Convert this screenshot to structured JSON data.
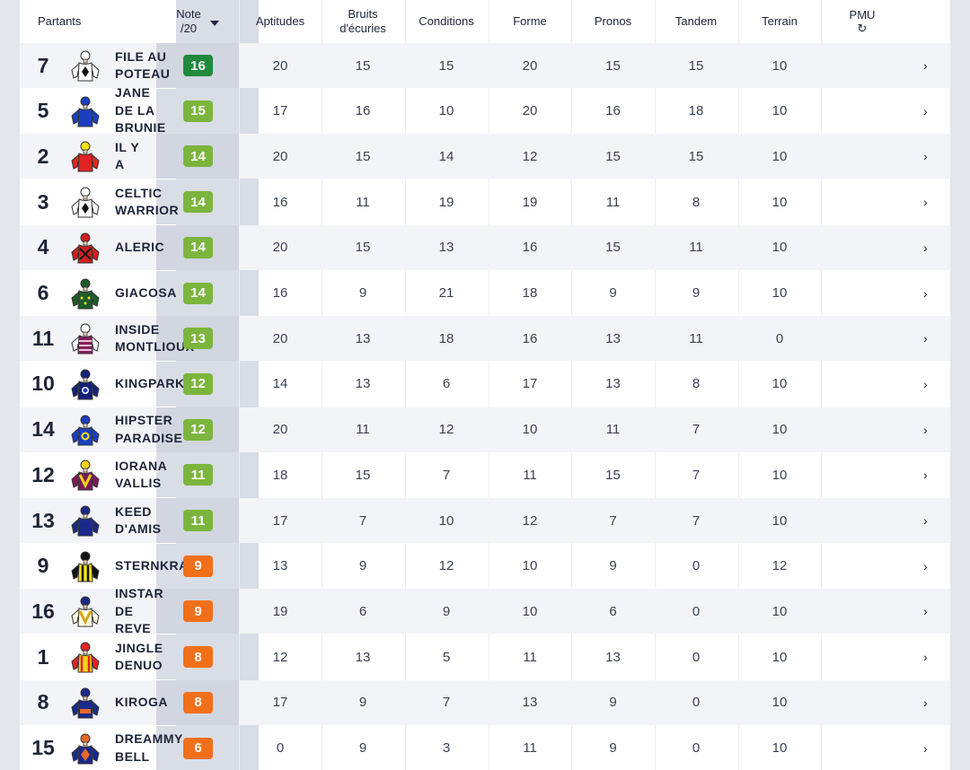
{
  "header": {
    "partants": "Partants",
    "note_line1": "Note",
    "note_line2": "/20",
    "aptitudes": "Aptitudes",
    "bruits_line1": "Bruits",
    "bruits_line2": "d'écuries",
    "conditions": "Conditions",
    "forme": "Forme",
    "pronos": "Pronos",
    "tandem": "Tandem",
    "terrain": "Terrain",
    "pmu": "PMU",
    "refresh_icon": "↻"
  },
  "colors": {
    "dark_green": "#1f8a3c",
    "green": "#7cb53d",
    "orange": "#f26f1a"
  },
  "rows": [
    {
      "num": "7",
      "name": "FILE AU\nPOTEAU",
      "note": "16",
      "badge": "dark_green",
      "aptitudes": "20",
      "bruits": "15",
      "conditions": "15",
      "forme": "20",
      "pronos": "15",
      "tandem": "15",
      "terrain": "10",
      "chevron": "›",
      "jersey": {
        "body": "#ffffff",
        "sleeve": "#ffffff",
        "cap": "#ffffff",
        "mark": "diamond"
      }
    },
    {
      "num": "5",
      "name": "JANE\nDE LA\nBRUNIE",
      "note": "15",
      "badge": "green",
      "aptitudes": "17",
      "bruits": "16",
      "conditions": "10",
      "forme": "20",
      "pronos": "16",
      "tandem": "18",
      "terrain": "10",
      "chevron": "›",
      "jersey": {
        "body": "#1c3fbf",
        "sleeve": "#1c3fbf",
        "cap": "#1c3fbf",
        "mark": "none"
      }
    },
    {
      "num": "2",
      "name": "IL Y\nA",
      "note": "14",
      "badge": "green",
      "aptitudes": "20",
      "bruits": "15",
      "conditions": "14",
      "forme": "12",
      "pronos": "15",
      "tandem": "15",
      "terrain": "10",
      "chevron": "›",
      "jersey": {
        "body": "#e02323",
        "sleeve": "#e02323",
        "cap": "#f2e21a",
        "mark": "none"
      }
    },
    {
      "num": "3",
      "name": "CELTIC\nWARRIOR",
      "note": "14",
      "badge": "green",
      "aptitudes": "16",
      "bruits": "11",
      "conditions": "19",
      "forme": "19",
      "pronos": "11",
      "tandem": "8",
      "terrain": "10",
      "chevron": "›",
      "jersey": {
        "body": "#ffffff",
        "sleeve": "#ffffff",
        "cap": "#ffffff",
        "mark": "diamond"
      }
    },
    {
      "num": "4",
      "name": "ALERIC",
      "note": "14",
      "badge": "green",
      "aptitudes": "20",
      "bruits": "15",
      "conditions": "13",
      "forme": "16",
      "pronos": "15",
      "tandem": "11",
      "terrain": "10",
      "chevron": "›",
      "jersey": {
        "body": "#d11f1f",
        "sleeve": "#d11f1f",
        "cap": "#d11f1f",
        "mark": "cross"
      }
    },
    {
      "num": "6",
      "name": "GIACOSA",
      "note": "14",
      "badge": "green",
      "aptitudes": "16",
      "bruits": "9",
      "conditions": "21",
      "forme": "18",
      "pronos": "9",
      "tandem": "9",
      "terrain": "10",
      "chevron": "›",
      "jersey": {
        "body": "#1e5d2a",
        "sleeve": "#1e5d2a",
        "cap": "#1e5d2a",
        "mark": "yellow-dots"
      }
    },
    {
      "num": "11",
      "name": "INSIDE\nMONTLIOUX",
      "note": "13",
      "badge": "green",
      "aptitudes": "20",
      "bruits": "13",
      "conditions": "18",
      "forme": "16",
      "pronos": "13",
      "tandem": "11",
      "terrain": "0",
      "chevron": "›",
      "jersey": {
        "body": "#8a1b58",
        "sleeve": "#ffffff",
        "cap": "#ffffff",
        "mark": "stripes"
      }
    },
    {
      "num": "10",
      "name": "KINGPARK",
      "note": "12",
      "badge": "green",
      "aptitudes": "14",
      "bruits": "13",
      "conditions": "6",
      "forme": "17",
      "pronos": "13",
      "tandem": "8",
      "terrain": "10",
      "chevron": "›",
      "jersey": {
        "body": "#15207a",
        "sleeve": "#15207a",
        "cap": "#15207a",
        "mark": "circle"
      }
    },
    {
      "num": "14",
      "name": "HIPSTER\nPARADISE",
      "note": "12",
      "badge": "green",
      "aptitudes": "20",
      "bruits": "11",
      "conditions": "12",
      "forme": "10",
      "pronos": "11",
      "tandem": "7",
      "terrain": "10",
      "chevron": "›",
      "jersey": {
        "body": "#1c3fbf",
        "sleeve": "#1c3fbf",
        "cap": "#1c3fbf",
        "mark": "yellow-circle"
      }
    },
    {
      "num": "12",
      "name": "IORANA\nVALLIS",
      "note": "11",
      "badge": "green",
      "aptitudes": "18",
      "bruits": "15",
      "conditions": "7",
      "forme": "11",
      "pronos": "15",
      "tandem": "7",
      "terrain": "10",
      "chevron": "›",
      "jersey": {
        "body": "#7a1b5a",
        "sleeve": "#7a1b5a",
        "cap": "#f2d21a",
        "mark": "yellow-v"
      }
    },
    {
      "num": "13",
      "name": "KEED\nD'AMIS",
      "note": "11",
      "badge": "green",
      "aptitudes": "17",
      "bruits": "7",
      "conditions": "10",
      "forme": "12",
      "pronos": "7",
      "tandem": "7",
      "terrain": "10",
      "chevron": "›",
      "jersey": {
        "body": "#1a2a8a",
        "sleeve": "#1a2a8a",
        "cap": "#1a2a8a",
        "mark": "none"
      }
    },
    {
      "num": "9",
      "name": "STERNKRAFT",
      "note": "9",
      "badge": "orange",
      "aptitudes": "13",
      "bruits": "9",
      "conditions": "12",
      "forme": "10",
      "pronos": "9",
      "tandem": "0",
      "terrain": "12",
      "chevron": "›",
      "jersey": {
        "body": "#f2e21a",
        "sleeve": "#111111",
        "cap": "#111111",
        "mark": "black-stripes"
      }
    },
    {
      "num": "16",
      "name": "INSTAR\nDE\nREVE",
      "note": "9",
      "badge": "orange",
      "aptitudes": "19",
      "bruits": "6",
      "conditions": "9",
      "forme": "10",
      "pronos": "6",
      "tandem": "0",
      "terrain": "10",
      "chevron": "›",
      "jersey": {
        "body": "#fffbe0",
        "sleeve": "#fffbe0",
        "cap": "#1a2a8a",
        "mark": "gold-v"
      }
    },
    {
      "num": "1",
      "name": "JINGLE\nDENUO",
      "note": "8",
      "badge": "orange",
      "aptitudes": "12",
      "bruits": "13",
      "conditions": "5",
      "forme": "11",
      "pronos": "13",
      "tandem": "0",
      "terrain": "10",
      "chevron": "›",
      "jersey": {
        "body": "#f2d21a",
        "sleeve": "#e02323",
        "cap": "#e02323",
        "mark": "red-stripes"
      }
    },
    {
      "num": "8",
      "name": "KIROGA",
      "note": "8",
      "badge": "orange",
      "aptitudes": "17",
      "bruits": "9",
      "conditions": "7",
      "forme": "13",
      "pronos": "9",
      "tandem": "0",
      "terrain": "10",
      "chevron": "›",
      "jersey": {
        "body": "#1a2a8a",
        "sleeve": "#1a2a8a",
        "cap": "#1a2a8a",
        "mark": "orange-band"
      }
    },
    {
      "num": "15",
      "name": "DREAMMY\nBELL",
      "note": "6",
      "badge": "orange",
      "aptitudes": "0",
      "bruits": "9",
      "conditions": "3",
      "forme": "11",
      "pronos": "9",
      "tandem": "0",
      "terrain": "10",
      "chevron": "›",
      "jersey": {
        "body": "#1a2a8a",
        "sleeve": "#1a2a8a",
        "cap": "#e8682a",
        "mark": "orange-diamond"
      }
    }
  ]
}
